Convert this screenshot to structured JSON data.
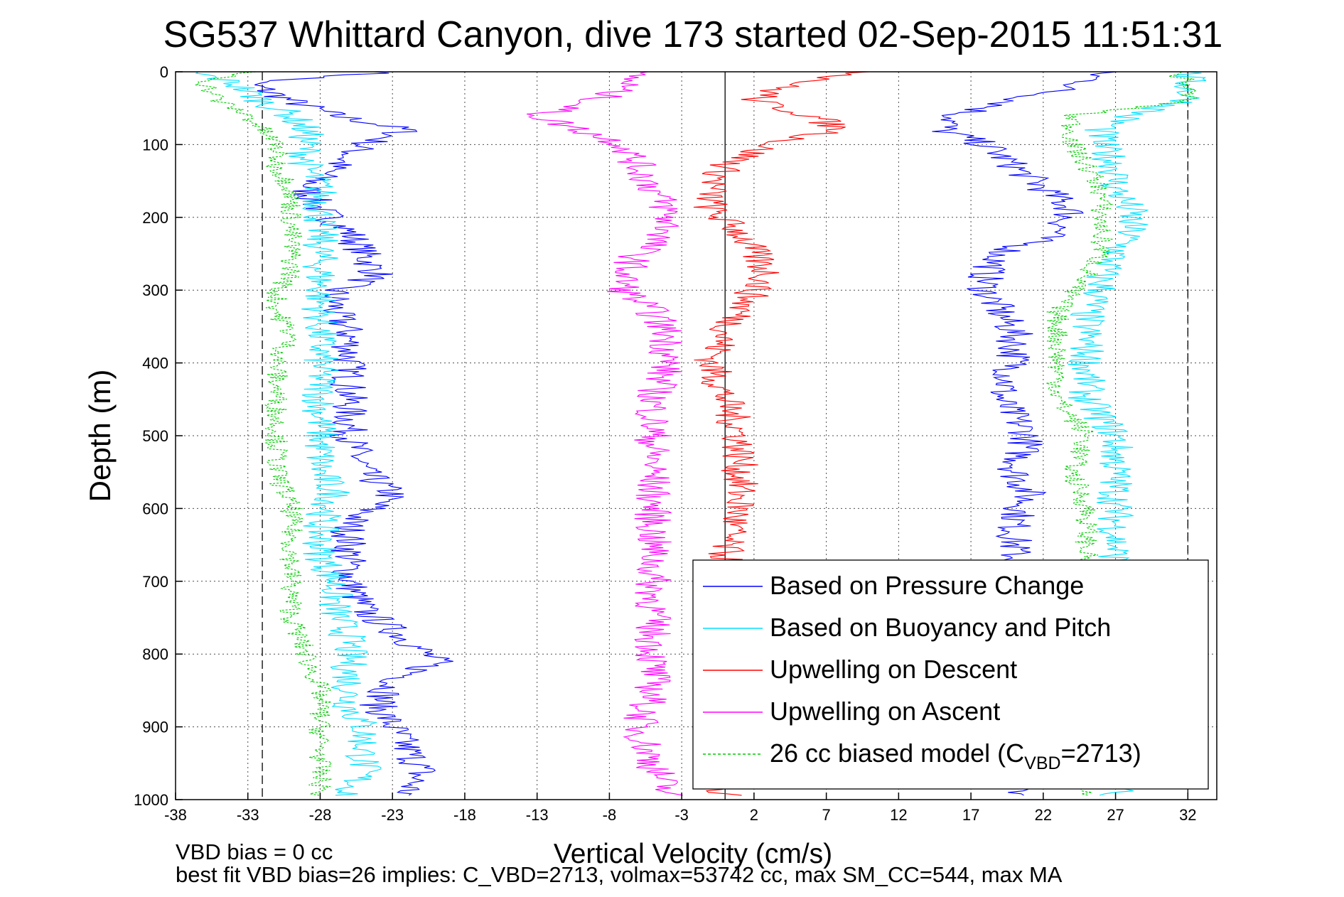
{
  "chart_data": {
    "type": "line",
    "title": "SG537 Whittard Canyon, dive 173 started 02-Sep-2015 11:51:31",
    "xlabel": "Vertical Velocity (cm/s)",
    "ylabel": "Depth (m)",
    "xlim": [
      -38,
      34
    ],
    "ylim": [
      0,
      1000
    ],
    "y_reversed": true,
    "grid": true,
    "legend_position": "bottom-right",
    "xticks": [
      "-38",
      "-33",
      "-28",
      "-23",
      "-18",
      "-13",
      "-8",
      "-3",
      "2",
      "7",
      "12",
      "17",
      "22",
      "27",
      "32"
    ],
    "yticks": [
      "0",
      "100",
      "200",
      "300",
      "400",
      "500",
      "600",
      "700",
      "800",
      "900",
      "1000"
    ],
    "reference_lines": {
      "zero_velocity": 0,
      "dashed_left": -32,
      "dashed_right": 32
    },
    "series": [
      {
        "name": "Based on Pressure Change",
        "color": "#0000ff",
        "depth": [
          0,
          15,
          40,
          60,
          80,
          100,
          130,
          160,
          190,
          220,
          250,
          280,
          300,
          330,
          360,
          400,
          450,
          500,
          550,
          580,
          620,
          660,
          700,
          740,
          780,
          810,
          840,
          870,
          900,
          930,
          960,
          990
        ],
        "descent": [
          -23,
          -33,
          -30,
          -27,
          -22,
          -25,
          -27,
          -29,
          -28,
          -26,
          -25,
          -24,
          -27,
          -27,
          -26,
          -26,
          -26,
          -26,
          -25,
          -23,
          -26,
          -26,
          -26,
          -25,
          -22,
          -20,
          -23,
          -24,
          -23,
          -22,
          -21,
          -22
        ],
        "ascent": [
          26,
          25,
          20,
          16,
          15,
          18,
          20,
          22,
          24,
          23,
          19,
          18,
          18,
          19,
          20,
          20,
          19,
          21,
          20,
          21,
          20,
          20,
          20,
          21,
          20,
          20,
          20,
          20,
          20,
          20,
          20,
          20
        ]
      },
      {
        "name": "Based on Buoyancy and Pitch",
        "color": "#00e0ff",
        "depth": [
          0,
          15,
          40,
          60,
          80,
          100,
          130,
          160,
          190,
          220,
          250,
          280,
          300,
          330,
          360,
          400,
          450,
          500,
          550,
          580,
          620,
          660,
          700,
          740,
          780,
          810,
          840,
          870,
          900,
          930,
          960,
          990
        ],
        "descent": [
          -37,
          -34,
          -32,
          -30,
          -29,
          -29,
          -29,
          -28,
          -28,
          -28,
          -28,
          -28,
          -28,
          -28,
          -28,
          -28,
          -28,
          -28,
          -28,
          -27,
          -28,
          -28,
          -27,
          -27,
          -26,
          -26,
          -26,
          -26,
          -25,
          -25,
          -25,
          -26
        ],
        "ascent": [
          32,
          32,
          32,
          28,
          26,
          26,
          27,
          27,
          28,
          28,
          27,
          26,
          26,
          25,
          25,
          25,
          25,
          27,
          27,
          27,
          27,
          27,
          27,
          27,
          27,
          27,
          27,
          27,
          27,
          27,
          27,
          27
        ]
      },
      {
        "name": "Upwelling on Descent",
        "color": "#ff0000",
        "depth": [
          0,
          10,
          20,
          40,
          60,
          80,
          100,
          130,
          160,
          190,
          220,
          250,
          280,
          300,
          330,
          360,
          400,
          450,
          500,
          550,
          600,
          650,
          700,
          750,
          800,
          850,
          900,
          950,
          990
        ],
        "values": [
          10,
          7,
          4,
          2,
          6,
          8,
          3,
          0,
          -1,
          -1,
          1,
          2,
          3,
          2,
          1,
          0,
          -1,
          0,
          1,
          1,
          1,
          0,
          0,
          0,
          0,
          0,
          0,
          0,
          0
        ]
      },
      {
        "name": "Upwelling on Ascent",
        "color": "#ff00ff",
        "depth": [
          0,
          20,
          40,
          60,
          80,
          100,
          130,
          160,
          190,
          220,
          250,
          280,
          300,
          330,
          360,
          400,
          450,
          500,
          550,
          600,
          650,
          700,
          750,
          800,
          850,
          900,
          950,
          990
        ],
        "values": [
          -6,
          -7,
          -9,
          -13,
          -10,
          -7,
          -6,
          -5,
          -4,
          -4,
          -6,
          -7,
          -7,
          -5,
          -4,
          -4,
          -5,
          -5,
          -5,
          -5,
          -5,
          -5,
          -5,
          -5,
          -5,
          -6,
          -5,
          -4
        ]
      },
      {
        "name": "26 cc biased model (C<sub>VBD</sub>=2713)",
        "color": "#00cc00",
        "dashed": true,
        "depth": [
          0,
          15,
          40,
          60,
          80,
          100,
          130,
          160,
          190,
          220,
          250,
          280,
          300,
          330,
          360,
          400,
          450,
          500,
          550,
          600,
          650,
          700,
          750,
          800,
          850,
          900,
          950,
          990
        ],
        "descent": [
          -33,
          -36,
          -35,
          -33,
          -32,
          -31,
          -31,
          -30,
          -30,
          -30,
          -30,
          -30,
          -31,
          -31,
          -30,
          -31,
          -31,
          -31,
          -31,
          -30,
          -30,
          -30,
          -30,
          -29,
          -28,
          -28,
          -28,
          -28
        ],
        "ascent": [
          31,
          32,
          32,
          24,
          24,
          24,
          25,
          26,
          26,
          26,
          26,
          25,
          24,
          23,
          23,
          23,
          23,
          25,
          24,
          25,
          25,
          25,
          25,
          25,
          25,
          25,
          25,
          25
        ]
      }
    ]
  },
  "legend": [
    {
      "label": "Based on Pressure Change",
      "color": "#0000ff",
      "dashed": false
    },
    {
      "label": "Based on Buoyancy and Pitch",
      "color": "#00e0ff",
      "dashed": false
    },
    {
      "label": "Upwelling on Descent",
      "color": "#ff0000",
      "dashed": false
    },
    {
      "label": "Upwelling on Ascent",
      "color": "#ff00ff",
      "dashed": false
    },
    {
      "label_main": "26 cc biased model (C",
      "label_sub": "VBD",
      "label_end": "=2713)",
      "color": "#00cc00",
      "dashed": true
    }
  ],
  "footer": {
    "line1": "VBD bias = 0 cc",
    "line2": "best fit VBD bias=26 implies: C_VBD=2713, volmax=53742 cc, max SM_CC=544, max MA"
  }
}
